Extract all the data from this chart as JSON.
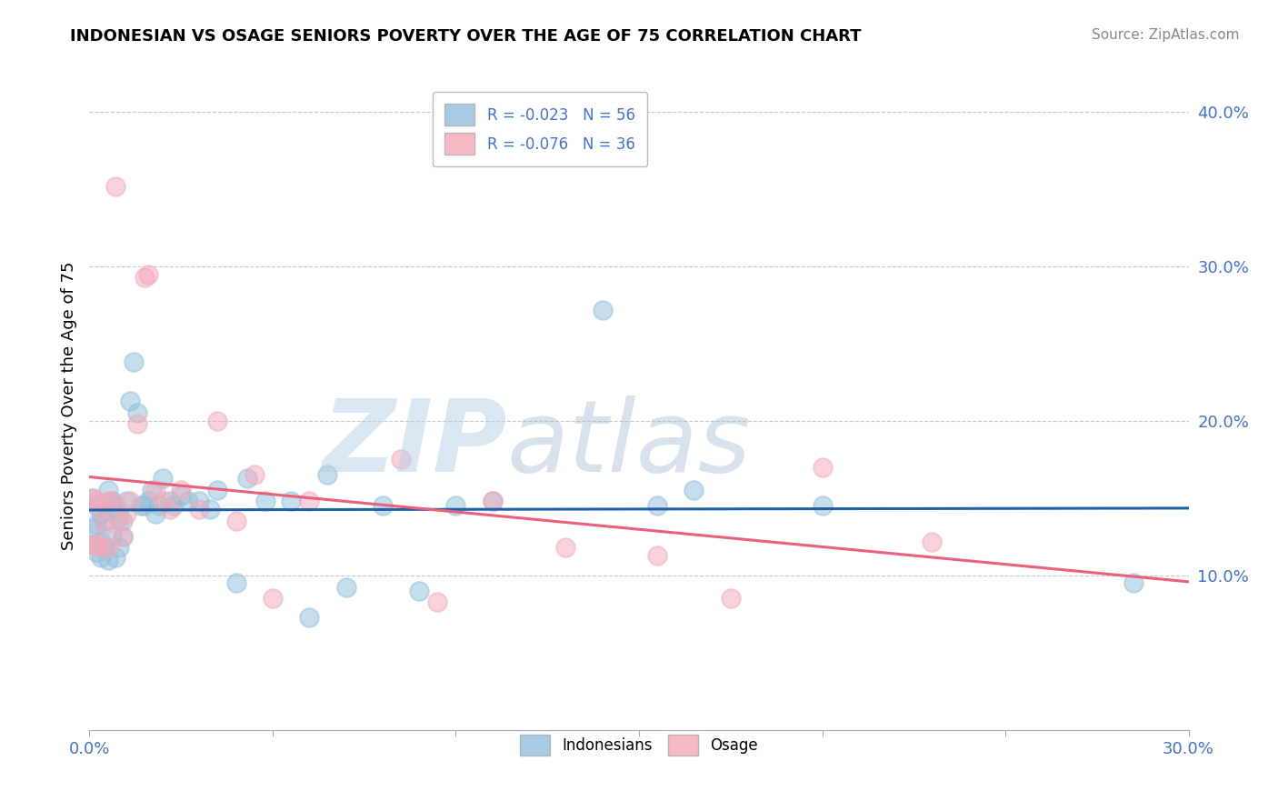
{
  "title": "INDONESIAN VS OSAGE SENIORS POVERTY OVER THE AGE OF 75 CORRELATION CHART",
  "source": "Source: ZipAtlas.com",
  "ylabel": "Seniors Poverty Over the Age of 75",
  "xlim": [
    0.0,
    0.3
  ],
  "ylim": [
    0.0,
    0.42
  ],
  "xticks": [
    0.0,
    0.05,
    0.1,
    0.15,
    0.2,
    0.25,
    0.3
  ],
  "xticklabels": [
    "0.0%",
    "",
    "",
    "",
    "",
    "",
    "30.0%"
  ],
  "yticks": [
    0.1,
    0.2,
    0.3,
    0.4
  ],
  "yticklabels": [
    "10.0%",
    "20.0%",
    "30.0%",
    "40.0%"
  ],
  "legend_R_label_ind": "R = -0.023   N = 56",
  "legend_R_label_osage": "R = -0.076   N = 36",
  "legend_bottom_ind": "Indonesians",
  "legend_bottom_osage": "Osage",
  "indonesian_x": [
    0.001,
    0.001,
    0.001,
    0.002,
    0.002,
    0.002,
    0.003,
    0.003,
    0.003,
    0.004,
    0.004,
    0.005,
    0.005,
    0.005,
    0.006,
    0.006,
    0.007,
    0.007,
    0.008,
    0.008,
    0.009,
    0.009,
    0.01,
    0.011,
    0.012,
    0.013,
    0.014,
    0.015,
    0.016,
    0.017,
    0.018,
    0.019,
    0.02,
    0.022,
    0.023,
    0.025,
    0.027,
    0.03,
    0.033,
    0.035,
    0.04,
    0.043,
    0.048,
    0.055,
    0.06,
    0.065,
    0.07,
    0.08,
    0.09,
    0.1,
    0.11,
    0.14,
    0.155,
    0.165,
    0.2,
    0.285
  ],
  "indonesian_y": [
    0.15,
    0.13,
    0.12,
    0.145,
    0.133,
    0.115,
    0.14,
    0.122,
    0.112,
    0.135,
    0.118,
    0.155,
    0.142,
    0.11,
    0.148,
    0.125,
    0.145,
    0.112,
    0.138,
    0.118,
    0.135,
    0.125,
    0.148,
    0.213,
    0.238,
    0.205,
    0.145,
    0.145,
    0.148,
    0.155,
    0.14,
    0.145,
    0.163,
    0.148,
    0.145,
    0.152,
    0.148,
    0.148,
    0.143,
    0.155,
    0.095,
    0.163,
    0.148,
    0.148,
    0.073,
    0.165,
    0.092,
    0.145,
    0.09,
    0.145,
    0.148,
    0.272,
    0.145,
    0.155,
    0.145,
    0.095
  ],
  "osage_x": [
    0.001,
    0.001,
    0.002,
    0.002,
    0.003,
    0.003,
    0.004,
    0.005,
    0.005,
    0.006,
    0.007,
    0.008,
    0.009,
    0.01,
    0.011,
    0.013,
    0.015,
    0.016,
    0.018,
    0.02,
    0.022,
    0.025,
    0.03,
    0.035,
    0.04,
    0.045,
    0.05,
    0.06,
    0.085,
    0.095,
    0.11,
    0.13,
    0.155,
    0.175,
    0.2,
    0.23
  ],
  "osage_y": [
    0.15,
    0.12,
    0.148,
    0.12,
    0.143,
    0.118,
    0.133,
    0.148,
    0.118,
    0.148,
    0.352,
    0.135,
    0.125,
    0.14,
    0.148,
    0.198,
    0.293,
    0.295,
    0.155,
    0.148,
    0.143,
    0.155,
    0.143,
    0.2,
    0.135,
    0.165,
    0.085,
    0.148,
    0.175,
    0.083,
    0.148,
    0.118,
    0.113,
    0.085,
    0.17,
    0.122
  ],
  "indonesian_color": "#91bfdb",
  "osage_color": "#f4a9b8",
  "indonesian_line_color": "#2060a8",
  "osage_line_color": "#e8607a",
  "watermark_zip": "ZIP",
  "watermark_atlas": "atlas",
  "background_color": "#ffffff",
  "grid_color": "#c8c8c8"
}
